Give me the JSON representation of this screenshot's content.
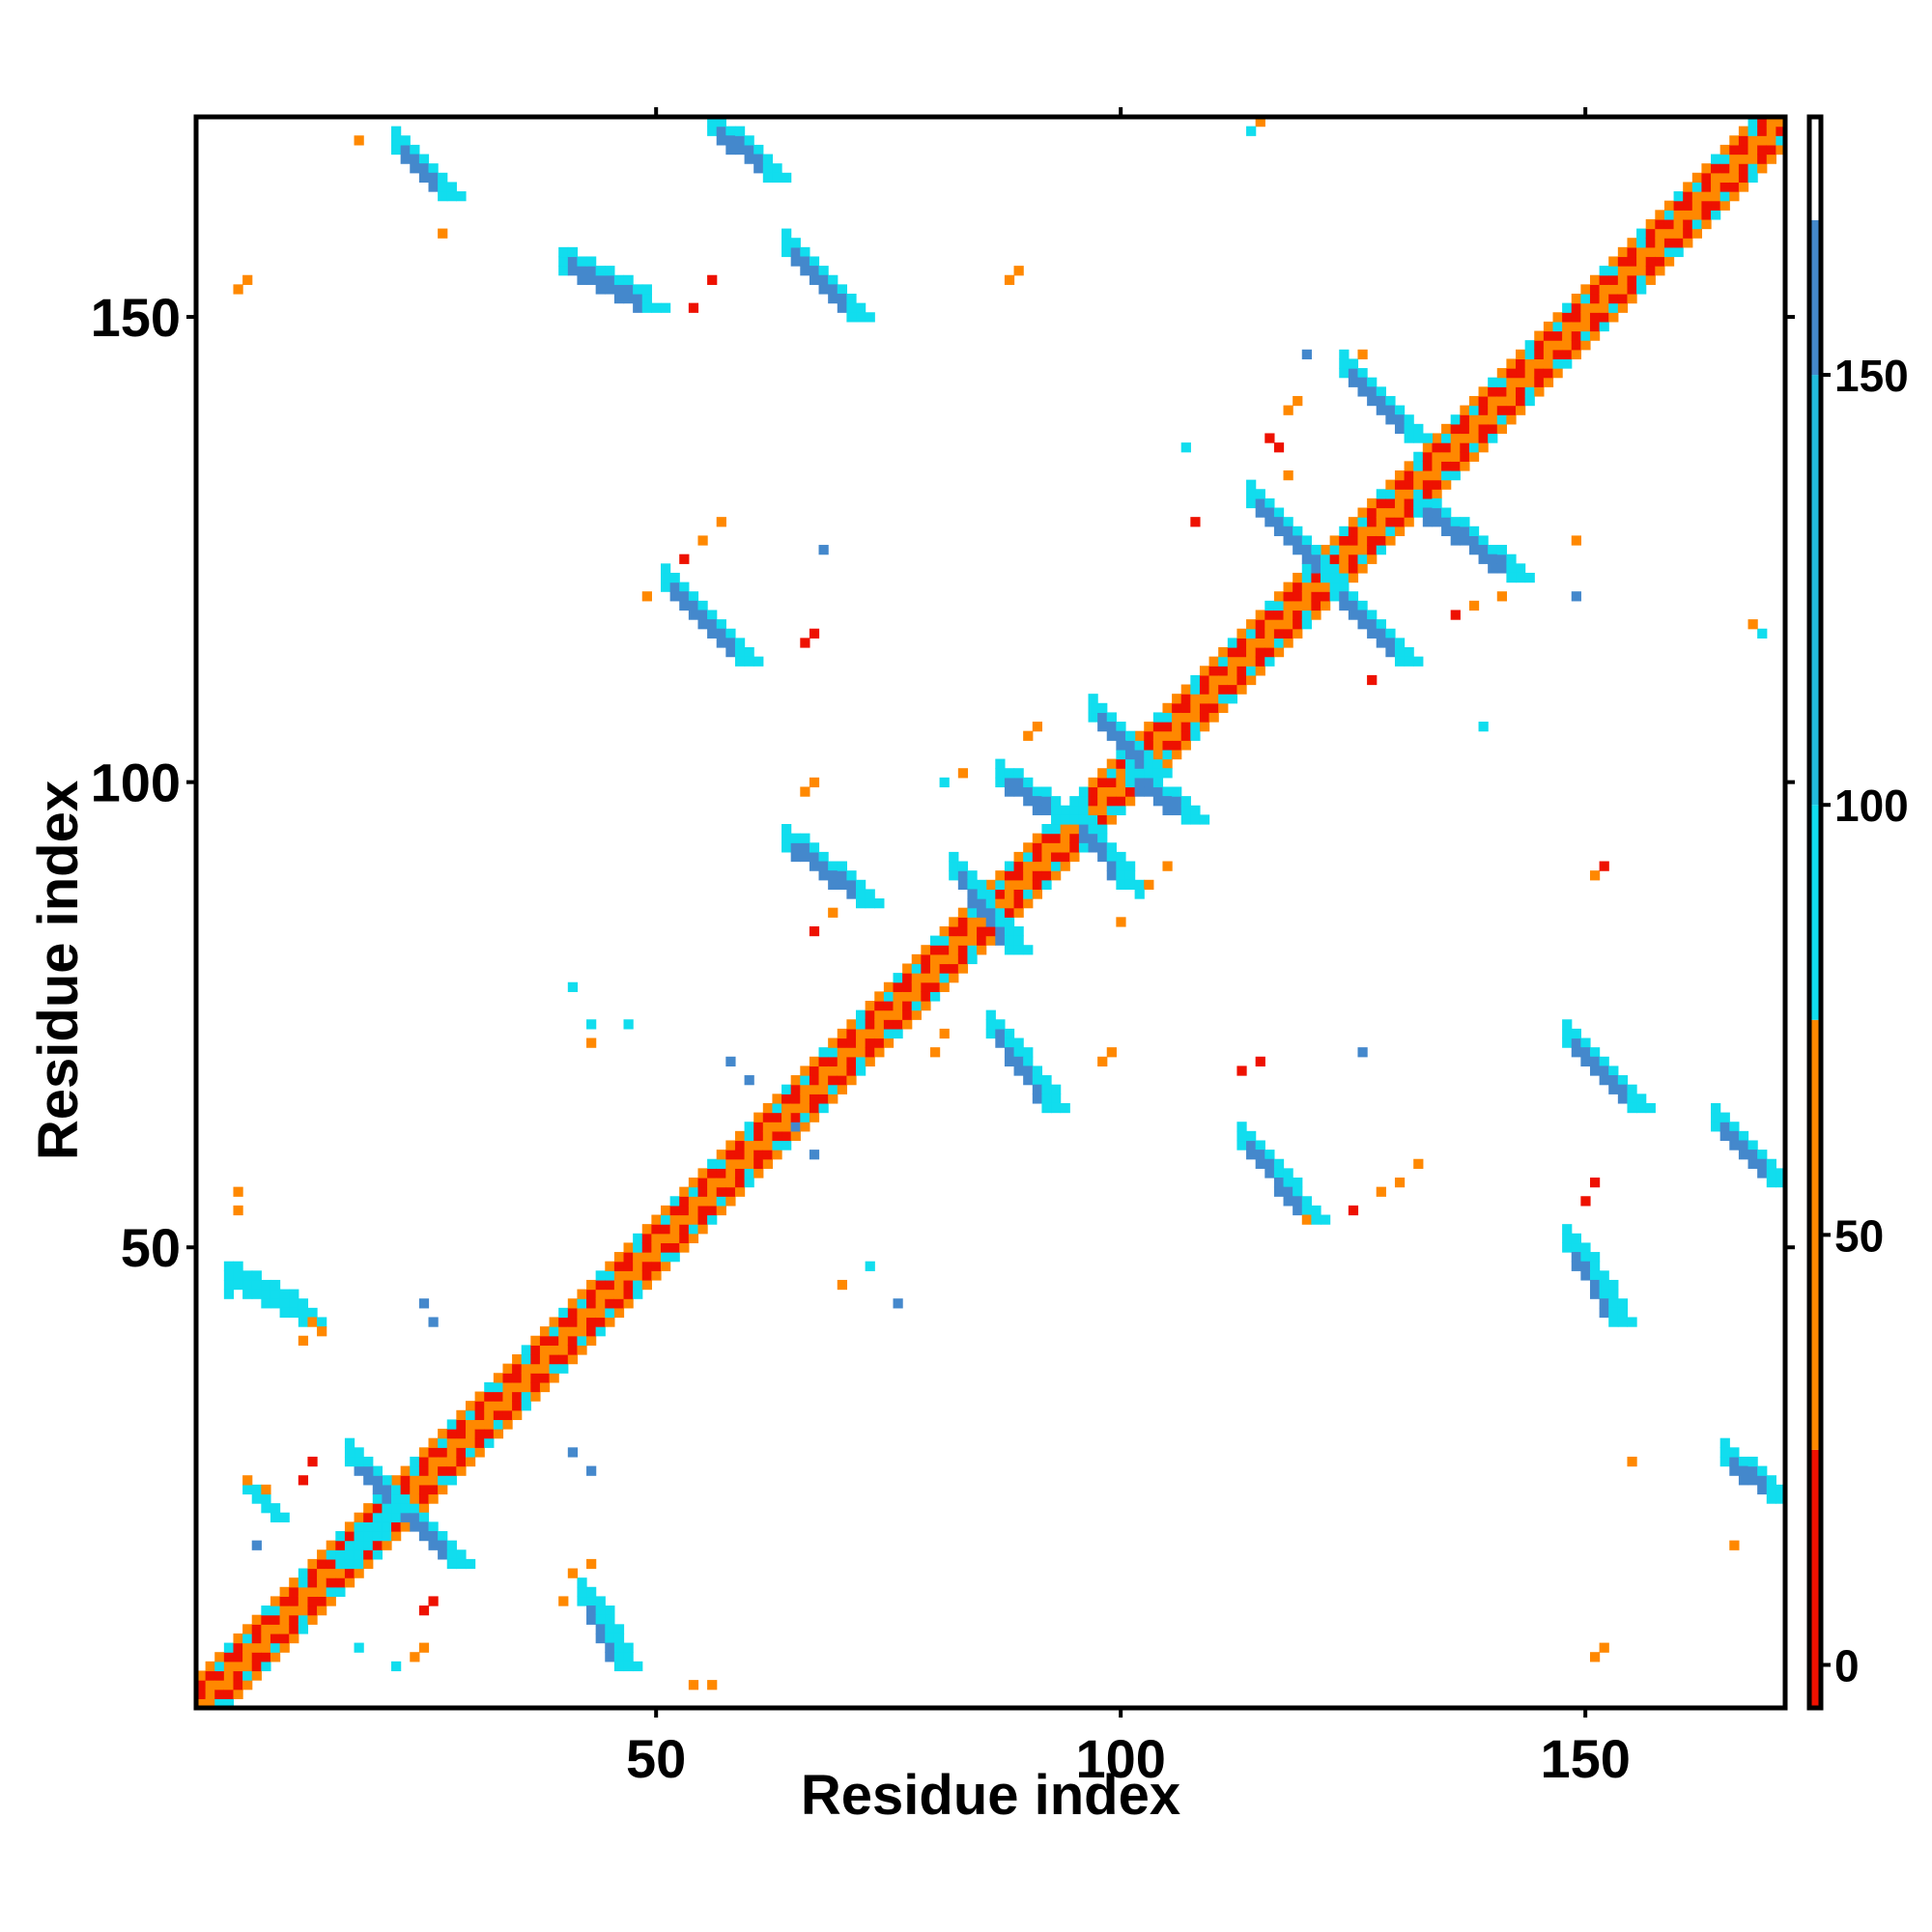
{
  "chart_data": {
    "type": "heatmap",
    "title": "",
    "xlabel": "Residue index",
    "ylabel": "Residue index",
    "xlim": [
      1,
      171
    ],
    "ylim": [
      1,
      171
    ],
    "x_ticks": [
      50,
      100,
      150
    ],
    "y_ticks": [
      50,
      100,
      150
    ],
    "colorbar": {
      "range": [
        -5,
        180
      ],
      "ticks": [
        0,
        50,
        100,
        150
      ],
      "bands": [
        {
          "from": -5,
          "to": 25,
          "color": "#ee1100"
        },
        {
          "from": 25,
          "to": 75,
          "color": "#ff8800"
        },
        {
          "from": 75,
          "to": 100,
          "color": "#11ddee"
        },
        {
          "from": 100,
          "to": 150,
          "color": "#22bbdd"
        },
        {
          "from": 150,
          "to": 168,
          "color": "#4488cc"
        },
        {
          "from": 168,
          "to": 180,
          "color": "#ffffff"
        }
      ]
    },
    "colors": {
      "red": "#ee1100",
      "orange": "#ff8800",
      "cyan": "#11ddee",
      "steel": "#4488cc"
    },
    "diagonal_band": {
      "width": 3
    },
    "segments": [
      {
        "x1": 22,
        "y1": 22,
        "x2": 17,
        "y2": 27,
        "w": 2,
        "c": "steel"
      },
      {
        "x1": 22,
        "y1": 22,
        "x2": 28,
        "y2": 16,
        "w": 2,
        "c": "steel"
      },
      {
        "x1": 22,
        "y1": 22,
        "x2": 16,
        "y2": 16,
        "w": 1,
        "c": "cyan"
      },
      {
        "x1": 6,
        "y1": 24,
        "x2": 9,
        "y2": 21,
        "w": 1,
        "c": "cyan"
      },
      {
        "x1": 4,
        "y1": 46,
        "x2": 12,
        "y2": 42,
        "w": 2,
        "c": "cyan"
      },
      {
        "x1": 42,
        "y1": 12,
        "x2": 46,
        "y2": 5,
        "w": 2,
        "c": "steel"
      },
      {
        "x1": 22,
        "y1": 168,
        "x2": 27,
        "y2": 163,
        "w": 2,
        "c": "steel"
      },
      {
        "x1": 56,
        "y1": 170,
        "x2": 62,
        "y2": 165,
        "w": 2,
        "c": "steel"
      },
      {
        "x1": 40,
        "y1": 155,
        "x2": 49,
        "y2": 151,
        "w": 2,
        "c": "steel"
      },
      {
        "x1": 64,
        "y1": 157,
        "x2": 71,
        "y2": 150,
        "w": 2,
        "c": "steel"
      },
      {
        "x1": 51,
        "y1": 121,
        "x2": 59,
        "y2": 113,
        "w": 2,
        "c": "steel"
      },
      {
        "x1": 64,
        "y1": 93,
        "x2": 72,
        "y2": 87,
        "w": 2,
        "c": "steel"
      },
      {
        "x1": 86,
        "y1": 73,
        "x2": 92,
        "y2": 65,
        "w": 2,
        "c": "steel"
      },
      {
        "x1": 113,
        "y1": 61,
        "x2": 120,
        "y2": 53,
        "w": 2,
        "c": "steel"
      },
      {
        "x1": 148,
        "y1": 72,
        "x2": 155,
        "y2": 65,
        "w": 2,
        "c": "steel"
      },
      {
        "x1": 164,
        "y1": 63,
        "x2": 170,
        "y2": 57,
        "w": 2,
        "c": "steel"
      },
      {
        "x1": 148,
        "y1": 50,
        "x2": 153,
        "y2": 42,
        "w": 2,
        "c": "steel"
      },
      {
        "x1": 165,
        "y1": 27,
        "x2": 170,
        "y2": 23,
        "w": 2,
        "c": "steel"
      },
      {
        "x1": 87,
        "y1": 100,
        "x2": 93,
        "y2": 96,
        "w": 2,
        "c": "steel"
      },
      {
        "x1": 95,
        "y1": 96,
        "x2": 100,
        "y2": 89,
        "w": 2,
        "c": "steel"
      },
      {
        "x1": 97,
        "y1": 107,
        "x2": 103,
        "y2": 101,
        "w": 2,
        "c": "steel"
      },
      {
        "x1": 101,
        "y1": 100,
        "x2": 107,
        "y2": 96,
        "w": 2,
        "c": "steel"
      },
      {
        "x1": 82,
        "y1": 90,
        "x2": 88,
        "y2": 82,
        "w": 2,
        "c": "steel"
      },
      {
        "x1": 114,
        "y1": 130,
        "x2": 122,
        "y2": 122,
        "w": 2,
        "c": "steel"
      },
      {
        "x1": 123,
        "y1": 120,
        "x2": 130,
        "y2": 113,
        "w": 2,
        "c": "steel"
      },
      {
        "x1": 124,
        "y1": 144,
        "x2": 131,
        "y2": 137,
        "w": 2,
        "c": "steel"
      },
      {
        "x1": 132,
        "y1": 129,
        "x2": 142,
        "y2": 122,
        "w": 2,
        "c": "steel"
      }
    ],
    "points": [
      {
        "x": 18,
        "y": 169,
        "c": "orange"
      },
      {
        "x": 5,
        "y": 153,
        "c": "orange"
      },
      {
        "x": 6,
        "y": 154,
        "c": "orange"
      },
      {
        "x": 27,
        "y": 159,
        "c": "orange"
      },
      {
        "x": 54,
        "y": 151,
        "c": "red"
      },
      {
        "x": 56,
        "y": 154,
        "c": "red"
      },
      {
        "x": 88,
        "y": 154,
        "c": "orange"
      },
      {
        "x": 89,
        "y": 155,
        "c": "orange"
      },
      {
        "x": 115,
        "y": 171,
        "c": "orange"
      },
      {
        "x": 114,
        "y": 170,
        "c": "cyan"
      },
      {
        "x": 49,
        "y": 120,
        "c": "orange"
      },
      {
        "x": 53,
        "y": 124,
        "c": "red"
      },
      {
        "x": 55,
        "y": 126,
        "c": "orange"
      },
      {
        "x": 57,
        "y": 128,
        "c": "orange"
      },
      {
        "x": 68,
        "y": 125,
        "c": "steel"
      },
      {
        "x": 67,
        "y": 116,
        "c": "red"
      },
      {
        "x": 66,
        "y": 115,
        "c": "red"
      },
      {
        "x": 67,
        "y": 100,
        "c": "orange"
      },
      {
        "x": 66,
        "y": 99,
        "c": "orange"
      },
      {
        "x": 69,
        "y": 86,
        "c": "orange"
      },
      {
        "x": 67,
        "y": 84,
        "c": "red"
      },
      {
        "x": 41,
        "y": 78,
        "c": "cyan"
      },
      {
        "x": 43,
        "y": 74,
        "c": "cyan"
      },
      {
        "x": 47,
        "y": 74,
        "c": "cyan"
      },
      {
        "x": 43,
        "y": 72,
        "c": "orange"
      },
      {
        "x": 58,
        "y": 70,
        "c": "steel"
      },
      {
        "x": 60,
        "y": 68,
        "c": "steel"
      },
      {
        "x": 65,
        "y": 63,
        "c": "steel"
      },
      {
        "x": 67,
        "y": 60,
        "c": "steel"
      },
      {
        "x": 73,
        "y": 48,
        "c": "cyan"
      },
      {
        "x": 70,
        "y": 46,
        "c": "orange"
      },
      {
        "x": 76,
        "y": 44,
        "c": "steel"
      },
      {
        "x": 80,
        "y": 71,
        "c": "orange"
      },
      {
        "x": 81,
        "y": 73,
        "c": "orange"
      },
      {
        "x": 99,
        "y": 71,
        "c": "orange"
      },
      {
        "x": 98,
        "y": 70,
        "c": "orange"
      },
      {
        "x": 100,
        "y": 85,
        "c": "orange"
      },
      {
        "x": 103,
        "y": 89,
        "c": "orange"
      },
      {
        "x": 105,
        "y": 91,
        "c": "orange"
      },
      {
        "x": 83,
        "y": 101,
        "c": "orange"
      },
      {
        "x": 81,
        "y": 100,
        "c": "cyan"
      },
      {
        "x": 90,
        "y": 105,
        "c": "orange"
      },
      {
        "x": 91,
        "y": 106,
        "c": "orange"
      },
      {
        "x": 102,
        "y": 88,
        "c": "cyan"
      },
      {
        "x": 108,
        "y": 128,
        "c": "red"
      },
      {
        "x": 118,
        "y": 133,
        "c": "orange"
      },
      {
        "x": 117,
        "y": 136,
        "c": "red"
      },
      {
        "x": 116,
        "y": 137,
        "c": "red"
      },
      {
        "x": 119,
        "y": 141,
        "c": "orange"
      },
      {
        "x": 118,
        "y": 140,
        "c": "orange"
      },
      {
        "x": 107,
        "y": 136,
        "c": "cyan"
      },
      {
        "x": 120,
        "y": 146,
        "c": "steel"
      },
      {
        "x": 126,
        "y": 146,
        "c": "orange"
      },
      {
        "x": 127,
        "y": 111,
        "c": "red"
      },
      {
        "x": 136,
        "y": 118,
        "c": "red"
      },
      {
        "x": 138,
        "y": 119,
        "c": "orange"
      },
      {
        "x": 141,
        "y": 120,
        "c": "orange"
      },
      {
        "x": 139,
        "y": 106,
        "c": "cyan"
      },
      {
        "x": 149,
        "y": 126,
        "c": "orange"
      },
      {
        "x": 149,
        "y": 120,
        "c": "steel"
      },
      {
        "x": 169,
        "y": 116,
        "c": "cyan"
      },
      {
        "x": 168,
        "y": 117,
        "c": "orange"
      },
      {
        "x": 151,
        "y": 90,
        "c": "orange"
      },
      {
        "x": 152,
        "y": 91,
        "c": "red"
      },
      {
        "x": 113,
        "y": 69,
        "c": "red"
      },
      {
        "x": 115,
        "y": 70,
        "c": "red"
      },
      {
        "x": 126,
        "y": 71,
        "c": "steel"
      },
      {
        "x": 125,
        "y": 54,
        "c": "red"
      },
      {
        "x": 128,
        "y": 56,
        "c": "orange"
      },
      {
        "x": 130,
        "y": 57,
        "c": "orange"
      },
      {
        "x": 132,
        "y": 59,
        "c": "orange"
      },
      {
        "x": 120,
        "y": 53,
        "c": "orange"
      },
      {
        "x": 150,
        "y": 55,
        "c": "red"
      },
      {
        "x": 151,
        "y": 57,
        "c": "red"
      },
      {
        "x": 155,
        "y": 27,
        "c": "orange"
      },
      {
        "x": 166,
        "y": 18,
        "c": "orange"
      },
      {
        "x": 151,
        "y": 6,
        "c": "orange"
      },
      {
        "x": 152,
        "y": 7,
        "c": "orange"
      },
      {
        "x": 5,
        "y": 56,
        "c": "orange"
      },
      {
        "x": 5,
        "y": 54,
        "c": "orange"
      },
      {
        "x": 13,
        "y": 42,
        "c": "orange"
      },
      {
        "x": 14,
        "y": 41,
        "c": "orange"
      },
      {
        "x": 12,
        "y": 40,
        "c": "orange"
      },
      {
        "x": 25,
        "y": 44,
        "c": "steel"
      },
      {
        "x": 26,
        "y": 42,
        "c": "steel"
      },
      {
        "x": 6,
        "y": 25,
        "c": "orange"
      },
      {
        "x": 12,
        "y": 25,
        "c": "red"
      },
      {
        "x": 13,
        "y": 27,
        "c": "red"
      },
      {
        "x": 7,
        "y": 18,
        "c": "steel"
      },
      {
        "x": 26,
        "y": 12,
        "c": "red"
      },
      {
        "x": 25,
        "y": 11,
        "c": "red"
      },
      {
        "x": 18,
        "y": 7,
        "c": "cyan"
      },
      {
        "x": 22,
        "y": 5,
        "c": "cyan"
      },
      {
        "x": 24,
        "y": 6,
        "c": "orange"
      },
      {
        "x": 25,
        "y": 7,
        "c": "orange"
      },
      {
        "x": 41,
        "y": 28,
        "c": "steel"
      },
      {
        "x": 43,
        "y": 26,
        "c": "steel"
      },
      {
        "x": 41,
        "y": 15,
        "c": "orange"
      },
      {
        "x": 40,
        "y": 12,
        "c": "orange"
      },
      {
        "x": 43,
        "y": 16,
        "c": "orange"
      },
      {
        "x": 54,
        "y": 3,
        "c": "orange"
      },
      {
        "x": 56,
        "y": 3,
        "c": "orange"
      },
      {
        "x": 8,
        "y": 24,
        "c": "orange"
      },
      {
        "x": 4,
        "y": 45,
        "c": "cyan"
      }
    ]
  }
}
